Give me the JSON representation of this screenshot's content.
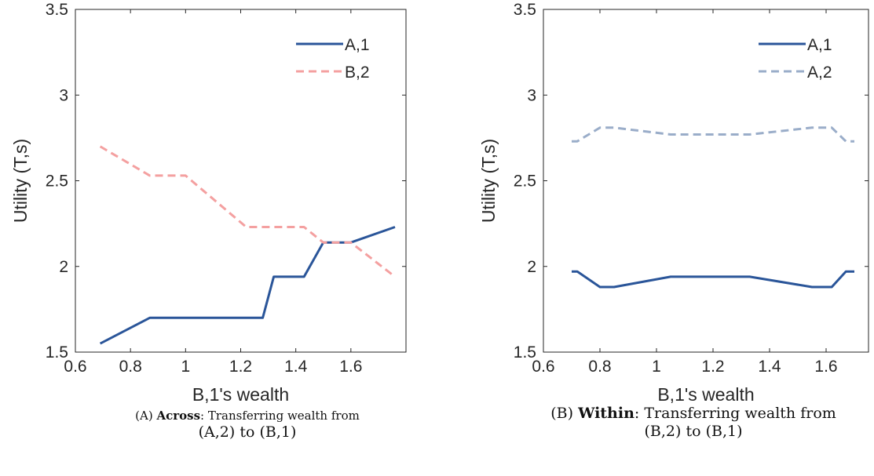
{
  "chart_data": [
    {
      "type": "line",
      "panel": "A",
      "xlabel": "B,1's wealth",
      "ylabel": "Utility (T,s)",
      "xlim": [
        0.6,
        1.8
      ],
      "ylim": [
        1.5,
        3.5
      ],
      "xticks": [
        "0.6",
        "0.8",
        "1",
        "1.2",
        "1.4",
        "1.6"
      ],
      "yticks": [
        "1.5",
        "2",
        "2.5",
        "3",
        "3.5"
      ],
      "legend_position": "top-right",
      "grid": false,
      "series": [
        {
          "name": "A,1",
          "color": "#2a5599",
          "dash": "solid",
          "x": [
            0.69,
            0.87,
            1.0,
            1.28,
            1.32,
            1.43,
            1.5,
            1.6,
            1.76
          ],
          "y": [
            1.55,
            1.7,
            1.7,
            1.7,
            1.94,
            1.94,
            2.14,
            2.14,
            2.23
          ]
        },
        {
          "name": "B,2",
          "color": "#f4a0a0",
          "dash": "dashed",
          "x": [
            0.69,
            0.87,
            1.0,
            1.22,
            1.3,
            1.43,
            1.5,
            1.6,
            1.76
          ],
          "y": [
            2.7,
            2.53,
            2.53,
            2.23,
            2.23,
            2.23,
            2.14,
            2.14,
            1.94
          ]
        }
      ],
      "caption": {
        "label": "(A)",
        "bold": "Across",
        "rest": ": Transferring wealth from",
        "line2": "(A,2) to (B,1)"
      }
    },
    {
      "type": "line",
      "panel": "B",
      "xlabel": "B,1's wealth",
      "ylabel": "Utility (T,s)",
      "xlim": [
        0.6,
        1.75
      ],
      "ylim": [
        1.5,
        3.5
      ],
      "xticks": [
        "0.6",
        "0.8",
        "1",
        "1.2",
        "1.4",
        "1.6"
      ],
      "yticks": [
        "1.5",
        "2",
        "2.5",
        "3",
        "3.5"
      ],
      "legend_position": "top-right",
      "grid": false,
      "series": [
        {
          "name": "A,1",
          "color": "#2a5599",
          "dash": "solid",
          "x": [
            0.7,
            0.72,
            0.8,
            0.85,
            1.05,
            1.33,
            1.55,
            1.62,
            1.67,
            1.7
          ],
          "y": [
            1.97,
            1.97,
            1.88,
            1.88,
            1.94,
            1.94,
            1.88,
            1.88,
            1.97,
            1.97
          ]
        },
        {
          "name": "A,2",
          "color": "#9aadc9",
          "dash": "dashed",
          "x": [
            0.7,
            0.72,
            0.8,
            0.85,
            1.05,
            1.33,
            1.55,
            1.62,
            1.67,
            1.7
          ],
          "y": [
            2.73,
            2.73,
            2.81,
            2.81,
            2.77,
            2.77,
            2.81,
            2.81,
            2.73,
            2.73
          ]
        }
      ],
      "caption": {
        "label": "(B)",
        "bold": "Within",
        "rest": ": Transferring wealth from",
        "line2": "(B,2) to (B,1)"
      }
    }
  ]
}
